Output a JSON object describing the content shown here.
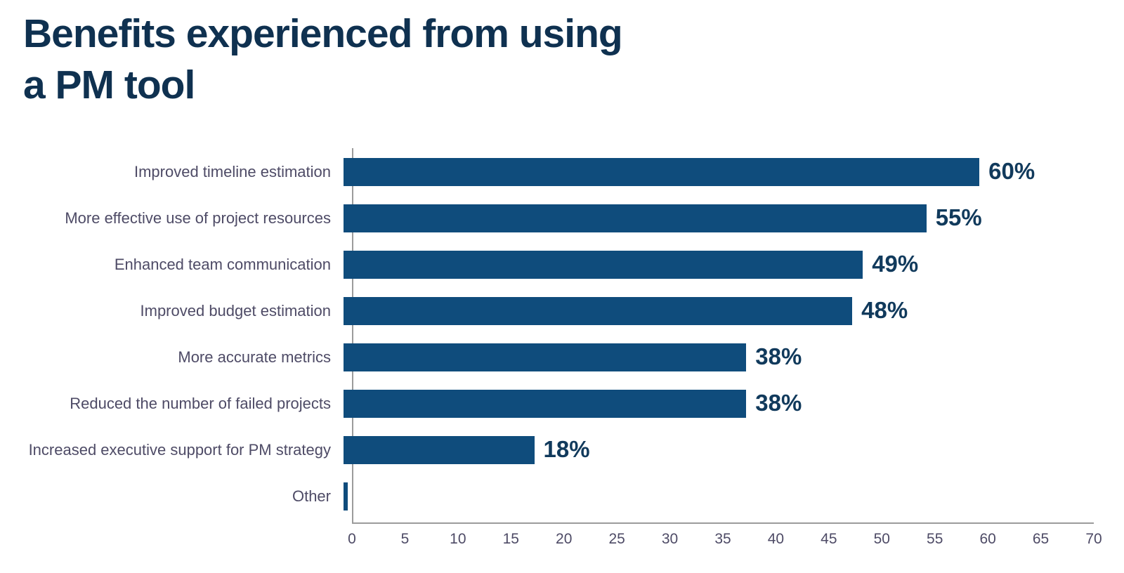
{
  "title": {
    "line1": "Benefits experienced from using",
    "line2": "a PM tool"
  },
  "colors": {
    "bar": "#0f4c7c",
    "title": "#0f3150",
    "value_label": "#113a5c",
    "category_label": "#4e4b66",
    "tick_label": "#4e4b66",
    "axis_line": "#9b9b9b"
  },
  "chart_data": {
    "type": "bar",
    "orientation": "horizontal",
    "title": "Benefits experienced from using a PM tool",
    "categories": [
      "Improved timeline estimation",
      "More effective use of project resources",
      "Enhanced team communication",
      "Improved budget estimation",
      "More accurate metrics",
      "Reduced the number of failed projects",
      "Increased executive support for PM strategy",
      "Other"
    ],
    "values": [
      60,
      55,
      49,
      48,
      38,
      38,
      18,
      0.4
    ],
    "value_labels": [
      "60%",
      "55%",
      "49%",
      "48%",
      "38%",
      "38%",
      "18%",
      ""
    ],
    "xlabel": "",
    "ylabel": "",
    "xlim": [
      0,
      70
    ],
    "x_ticks": [
      0,
      5,
      10,
      15,
      20,
      25,
      30,
      35,
      40,
      45,
      50,
      55,
      60,
      65,
      70
    ],
    "grid": false,
    "legend": false
  }
}
